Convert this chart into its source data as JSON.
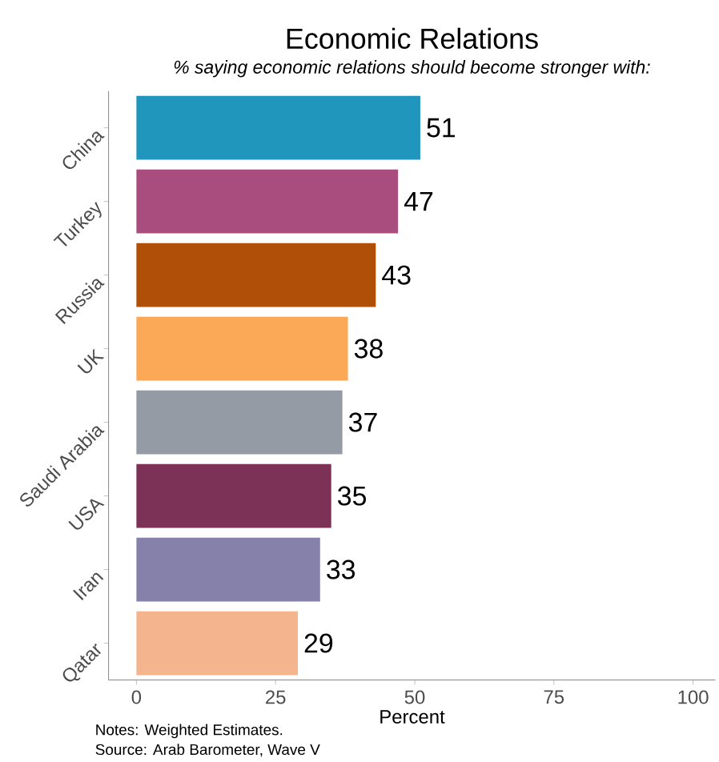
{
  "chart_data": {
    "type": "bar",
    "orientation": "horizontal",
    "title": "Economic Relations",
    "subtitle": "% saying economic relations should become stronger with:",
    "categories": [
      "China",
      "Turkey",
      "Russia",
      "UK",
      "Saudi Arabia",
      "USA",
      "Iran",
      "Qatar"
    ],
    "values": [
      51,
      47,
      43,
      38,
      37,
      35,
      33,
      29
    ],
    "colors": [
      "#2196bd",
      "#a94d7f",
      "#b05008",
      "#fba957",
      "#949ba4",
      "#7c3257",
      "#8581ab",
      "#f4b48e"
    ],
    "xlim": [
      -5,
      104
    ],
    "xticks": [
      0,
      25,
      50,
      75,
      100
    ],
    "xlabel": "Percent",
    "data_labels": true,
    "annotations": [
      "Notes: Weighted Estimates.",
      "Source: Arab Barometer, Wave V"
    ]
  }
}
